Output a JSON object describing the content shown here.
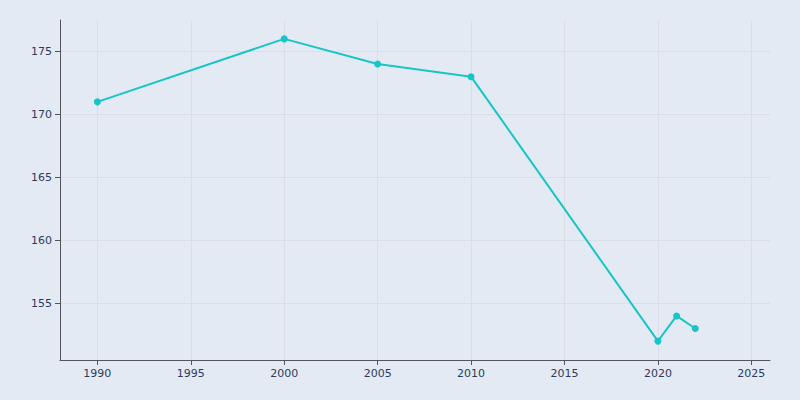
{
  "chart_data": {
    "type": "line",
    "x": [
      1990,
      2000,
      2005,
      2010,
      2020,
      2021,
      2022
    ],
    "values": [
      171,
      176,
      174,
      173,
      152,
      154,
      153
    ],
    "color": "#18C5C5",
    "marker": "circle",
    "xlim": [
      1988,
      2026
    ],
    "xticks": [
      1990,
      1995,
      2000,
      2005,
      2010,
      2015,
      2020,
      2025
    ],
    "ylim": [
      150.5,
      177.5
    ],
    "yticks": [
      155,
      160,
      165,
      170,
      175
    ],
    "grid": true
  }
}
